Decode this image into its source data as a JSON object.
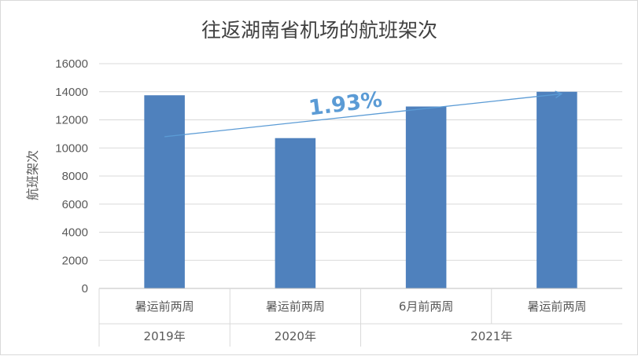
{
  "chart_data": {
    "type": "bar",
    "title": "往返湖南省机场的航班架次",
    "ylabel": "航班架次",
    "xlabel": "",
    "ylim": [
      0,
      16000
    ],
    "yticks": [
      0,
      2000,
      4000,
      6000,
      8000,
      10000,
      12000,
      14000,
      16000
    ],
    "grid": true,
    "categories": [
      "暑运前两周",
      "暑运前两周",
      "6月前两周",
      "暑运前两周"
    ],
    "groups": [
      {
        "label": "2019年",
        "span": 1
      },
      {
        "label": "2020年",
        "span": 1
      },
      {
        "label": "2021年",
        "span": 2
      }
    ],
    "series": [
      {
        "values": [
          13750,
          10700,
          12950,
          14000
        ],
        "color": "#4f81bd"
      }
    ],
    "trendline": {
      "from": 10800,
      "to": 13850,
      "color": "#5b9bd5"
    },
    "annotation": {
      "text": "1.93%",
      "color": "#5b9bd5"
    }
  }
}
